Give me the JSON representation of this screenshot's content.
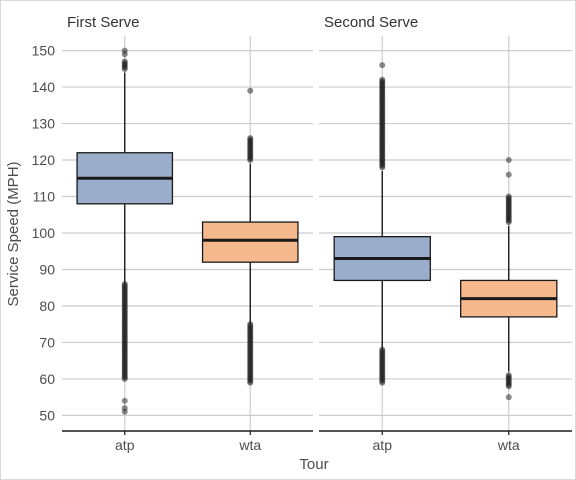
{
  "chart_data": {
    "type": "boxplot",
    "ylabel": "Service Speed (MPH)",
    "xlabel": "Tour",
    "ylim": [
      46,
      154
    ],
    "yticks": [
      50,
      60,
      70,
      80,
      90,
      100,
      110,
      120,
      130,
      140,
      150
    ],
    "grid": true,
    "categories": [
      "atp",
      "wta"
    ],
    "colors": {
      "atp": "#9aaecb",
      "wta": "#f5b98d"
    },
    "panels": [
      {
        "title": "First Serve",
        "boxes": [
          {
            "category": "atp",
            "whisker_low": 86,
            "q1": 108,
            "median": 115,
            "q3": 122,
            "whisker_high": 144,
            "outliers_dense": [
              [
                60,
                86
              ],
              [
                145,
                147
              ]
            ],
            "outliers": [
              52,
              51,
              54,
              149,
              150
            ]
          },
          {
            "category": "wta",
            "whisker_low": 75,
            "q1": 92,
            "median": 98,
            "q3": 103,
            "whisker_high": 119,
            "outliers_dense": [
              [
                59,
                75
              ],
              [
                120,
                126
              ]
            ],
            "outliers": [
              139
            ]
          }
        ]
      },
      {
        "title": "Second Serve",
        "boxes": [
          {
            "category": "atp",
            "whisker_low": 68,
            "q1": 87,
            "median": 93,
            "q3": 99,
            "whisker_high": 117,
            "outliers_dense": [
              [
                59,
                68
              ],
              [
                118,
                142
              ]
            ],
            "outliers": [
              146
            ]
          },
          {
            "category": "wta",
            "whisker_low": 62,
            "q1": 77,
            "median": 82,
            "q3": 87,
            "whisker_high": 102,
            "outliers_dense": [
              [
                58,
                61
              ],
              [
                103,
                110
              ]
            ],
            "outliers": [
              55,
              116,
              120
            ]
          }
        ]
      }
    ]
  }
}
